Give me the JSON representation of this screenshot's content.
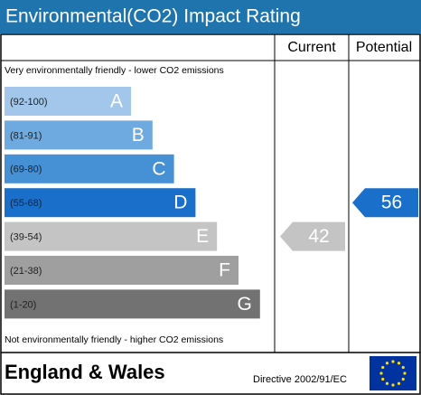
{
  "header": {
    "title": "Environmental(CO2) Impact Rating"
  },
  "columns": {
    "current": "Current",
    "potential": "Potential"
  },
  "notes": {
    "top": "Very environmentally friendly - lower CO2 emissions",
    "bottom": "Not environmentally friendly - higher CO2 emissions"
  },
  "bands": [
    {
      "range": "(92-100)",
      "letter": "A",
      "color": "#a3c7ea"
    },
    {
      "range": "(81-91)",
      "letter": "B",
      "color": "#6eaae0"
    },
    {
      "range": "(69-80)",
      "letter": "C",
      "color": "#4690d6"
    },
    {
      "range": "(55-68)",
      "letter": "D",
      "color": "#1a6fcb"
    },
    {
      "range": "(39-54)",
      "letter": "E",
      "color": "#c4c4c4"
    },
    {
      "range": "(21-38)",
      "letter": "F",
      "color": "#9f9f9f"
    },
    {
      "range": "(1-20)",
      "letter": "G",
      "color": "#727272"
    }
  ],
  "ratings": {
    "current": 42,
    "potential": 56
  },
  "footer": {
    "region": "England & Wales",
    "directive": "Directive 2002/91/EC"
  }
}
